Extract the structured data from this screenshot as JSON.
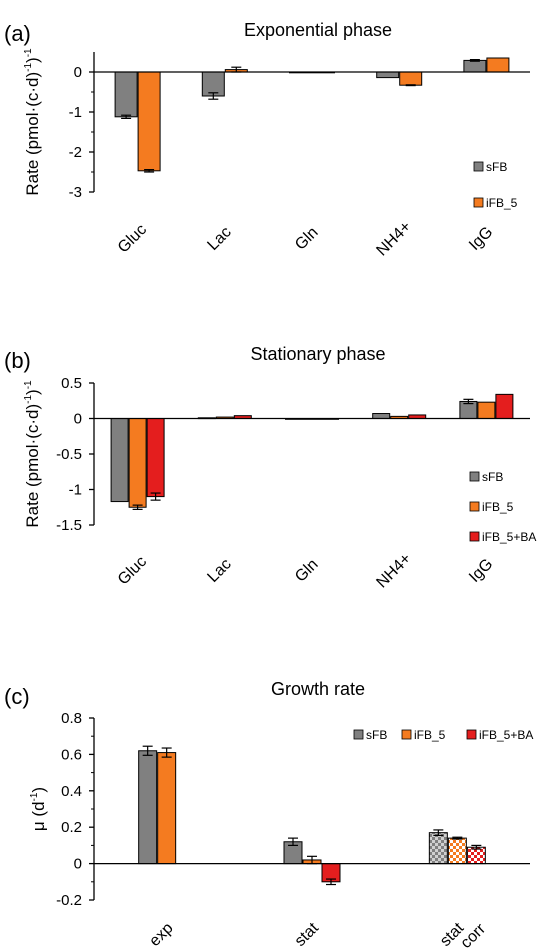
{
  "chart_data": [
    {
      "type": "bar",
      "panel": "(a)",
      "title": "Exponential phase",
      "ylabel": "Rate (pmol·(c·d)",
      "ylabel_sup": "-1",
      "ylabel_close": ")",
      "ylabel_sup2": "-1",
      "ylim": [
        -3,
        0.5
      ],
      "yticks": [
        0,
        -1,
        -2,
        -3
      ],
      "ytick_labels": [
        "0",
        "-1",
        "-2",
        "-3"
      ],
      "grid": false,
      "legend_position": "right",
      "categories": [
        "Gluc",
        "Lac",
        "Gln",
        "NH4+",
        "IgG"
      ],
      "series": [
        {
          "name": "sFB",
          "color": "#808080",
          "pattern": "solid",
          "values": [
            -1.12,
            -0.6,
            -0.01,
            -0.14,
            0.29
          ],
          "errors": [
            0.04,
            0.08,
            0.0,
            0.0,
            0.02
          ]
        },
        {
          "name": "iFB_5",
          "color": "#F47B20",
          "pattern": "solid",
          "values": [
            -2.47,
            0.06,
            -0.02,
            -0.33,
            0.35
          ],
          "errors": [
            0.03,
            0.06,
            0.0,
            0.01,
            0.0
          ]
        }
      ]
    },
    {
      "type": "bar",
      "panel": "(b)",
      "title": "Stationary phase",
      "ylabel": "Rate (pmol·(c·d)",
      "ylabel_sup": "-1",
      "ylabel_close": ")",
      "ylabel_sup2": "-1",
      "ylim": [
        -1.5,
        0.5
      ],
      "yticks": [
        0.5,
        0,
        -0.5,
        -1,
        -1.5
      ],
      "ytick_labels": [
        "0.5",
        "0",
        "-0.5",
        "-1",
        "-1.5"
      ],
      "grid": false,
      "legend_position": "right",
      "categories": [
        "Gluc",
        "Lac",
        "Gln",
        "NH4+",
        "IgG"
      ],
      "series": [
        {
          "name": "sFB",
          "color": "#808080",
          "pattern": "solid",
          "values": [
            -1.17,
            0.01,
            -0.005,
            0.07,
            0.24
          ],
          "errors": [
            0.0,
            0.0,
            0.0,
            0.0,
            0.03
          ]
        },
        {
          "name": "iFB_5",
          "color": "#F47B20",
          "pattern": "solid",
          "values": [
            -1.25,
            0.02,
            -0.005,
            0.03,
            0.23
          ],
          "errors": [
            0.03,
            0.0,
            0.0,
            0.0,
            0.0
          ]
        },
        {
          "name": "iFB_5+BA",
          "color": "#E41E1E",
          "pattern": "solid",
          "values": [
            -1.1,
            0.04,
            -0.005,
            0.05,
            0.34
          ],
          "errors": [
            0.05,
            0.0,
            0.0,
            0.0,
            0.0
          ]
        }
      ]
    },
    {
      "type": "bar",
      "panel": "(c)",
      "title": "Growth rate",
      "ylabel": "μ (d",
      "ylabel_sup": "-1",
      "ylabel_close": ")",
      "ylabel_sup2": "",
      "ylim": [
        -0.2,
        0.8
      ],
      "yticks": [
        0.8,
        0.6,
        0.4,
        0.2,
        0,
        -0.2
      ],
      "ytick_labels": [
        "0.8",
        "0.6",
        "0.4",
        "0.2",
        "0",
        "-0.2"
      ],
      "grid": false,
      "legend_position": "top-right",
      "categories": [
        "exp",
        "stat",
        "stat\ncorr"
      ],
      "category_lines": [
        [
          "exp"
        ],
        [
          "stat"
        ],
        [
          "stat",
          "corr"
        ]
      ],
      "series": [
        {
          "name": "sFB",
          "color": "#808080",
          "values": [
            0.62,
            0.12,
            0.17
          ],
          "errors": [
            0.025,
            0.02,
            0.015
          ],
          "patterns": [
            "solid",
            "solid",
            "checker"
          ]
        },
        {
          "name": "iFB_5",
          "color": "#F47B20",
          "values": [
            0.61,
            0.02,
            0.14
          ],
          "errors": [
            0.025,
            0.02,
            0.005
          ],
          "patterns": [
            "solid",
            "solid",
            "checker"
          ]
        },
        {
          "name": "iFB_5+BA",
          "color": "#E41E1E",
          "values": [
            null,
            -0.1,
            0.09
          ],
          "errors": [
            0,
            0.015,
            0.01
          ],
          "patterns": [
            "solid",
            "solid",
            "checker"
          ]
        }
      ]
    }
  ]
}
